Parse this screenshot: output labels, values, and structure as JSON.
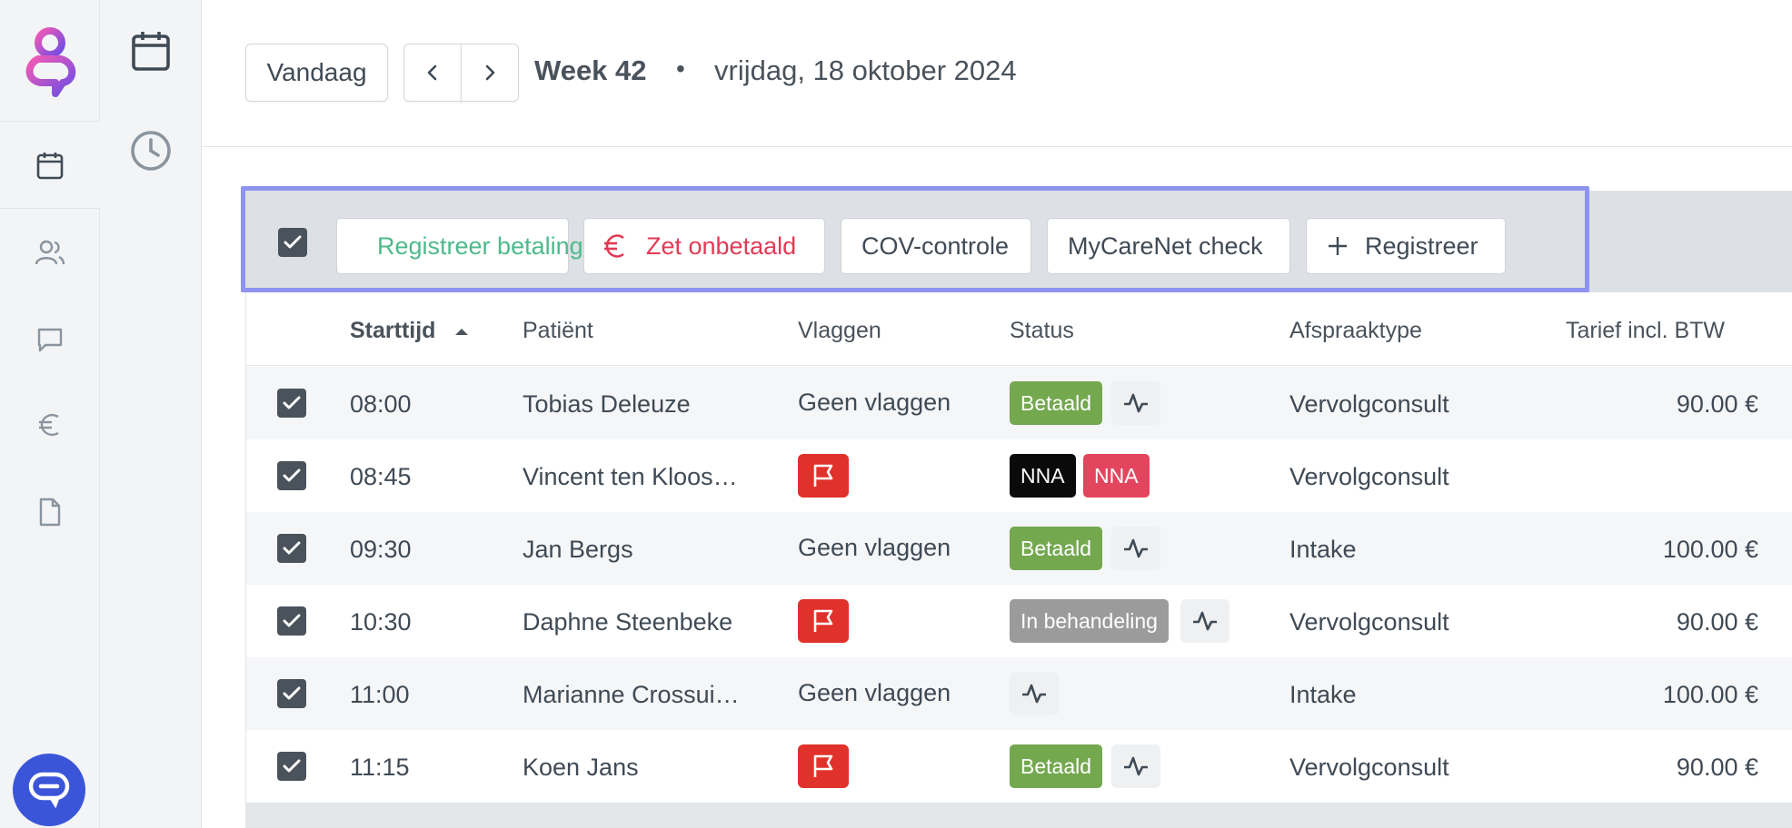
{
  "header": {
    "today_label": "Vandaag",
    "week_label": "Week 42",
    "separator": "•",
    "date_label": "vrijdag, 18 oktober 2024"
  },
  "toolbar": {
    "register_payment": "Registreer betaling",
    "set_unpaid": "Zet onbetaald",
    "cov_check": "COV-controle",
    "mycarenet_check": "MyCareNet check",
    "register": "Registreer"
  },
  "table": {
    "columns": {
      "start": "Starttijd",
      "patient": "Patiënt",
      "flags": "Vlaggen",
      "status": "Status",
      "type": "Afspraaktype",
      "rate": "Tarief incl. BTW"
    },
    "rows": [
      {
        "time": "08:00",
        "patient": "Tobias Deleuze",
        "flags": "Geen vlaggen",
        "status": [
          "Betaald"
        ],
        "type": "Vervolgconsult",
        "rate": "90.00 €"
      },
      {
        "time": "08:45",
        "patient": "Vincent ten Kloos…",
        "flags": "",
        "status": [
          "NNA",
          "NNA"
        ],
        "type": "Vervolgconsult",
        "rate": ""
      },
      {
        "time": "09:30",
        "patient": "Jan Bergs",
        "flags": "Geen vlaggen",
        "status": [
          "Betaald"
        ],
        "type": "Intake",
        "rate": "100.00 €"
      },
      {
        "time": "10:30",
        "patient": "Daphne Steenbeke",
        "flags": "",
        "status": [
          "In behandeling"
        ],
        "type": "Vervolgconsult",
        "rate": "90.00 €"
      },
      {
        "time": "11:00",
        "patient": "Marianne Crossui…",
        "flags": "Geen vlaggen",
        "status": [],
        "type": "Intake",
        "rate": "100.00 €"
      },
      {
        "time": "11:15",
        "patient": "Koen Jans",
        "flags": "",
        "status": [
          "Betaald"
        ],
        "type": "Vervolgconsult",
        "rate": "90.00 €"
      }
    ]
  },
  "colors": {
    "paid": "#74a84f",
    "nna_black": "#0a0a0a",
    "nna_red": "#e4455e",
    "in_progress": "#9b9b9b",
    "flag": "#e0322b",
    "euro_green": "#4dba8c",
    "euro_red": "#e03a55",
    "toolbar_outline": "#8e93f2",
    "brand_blue": "#3b55d9"
  }
}
